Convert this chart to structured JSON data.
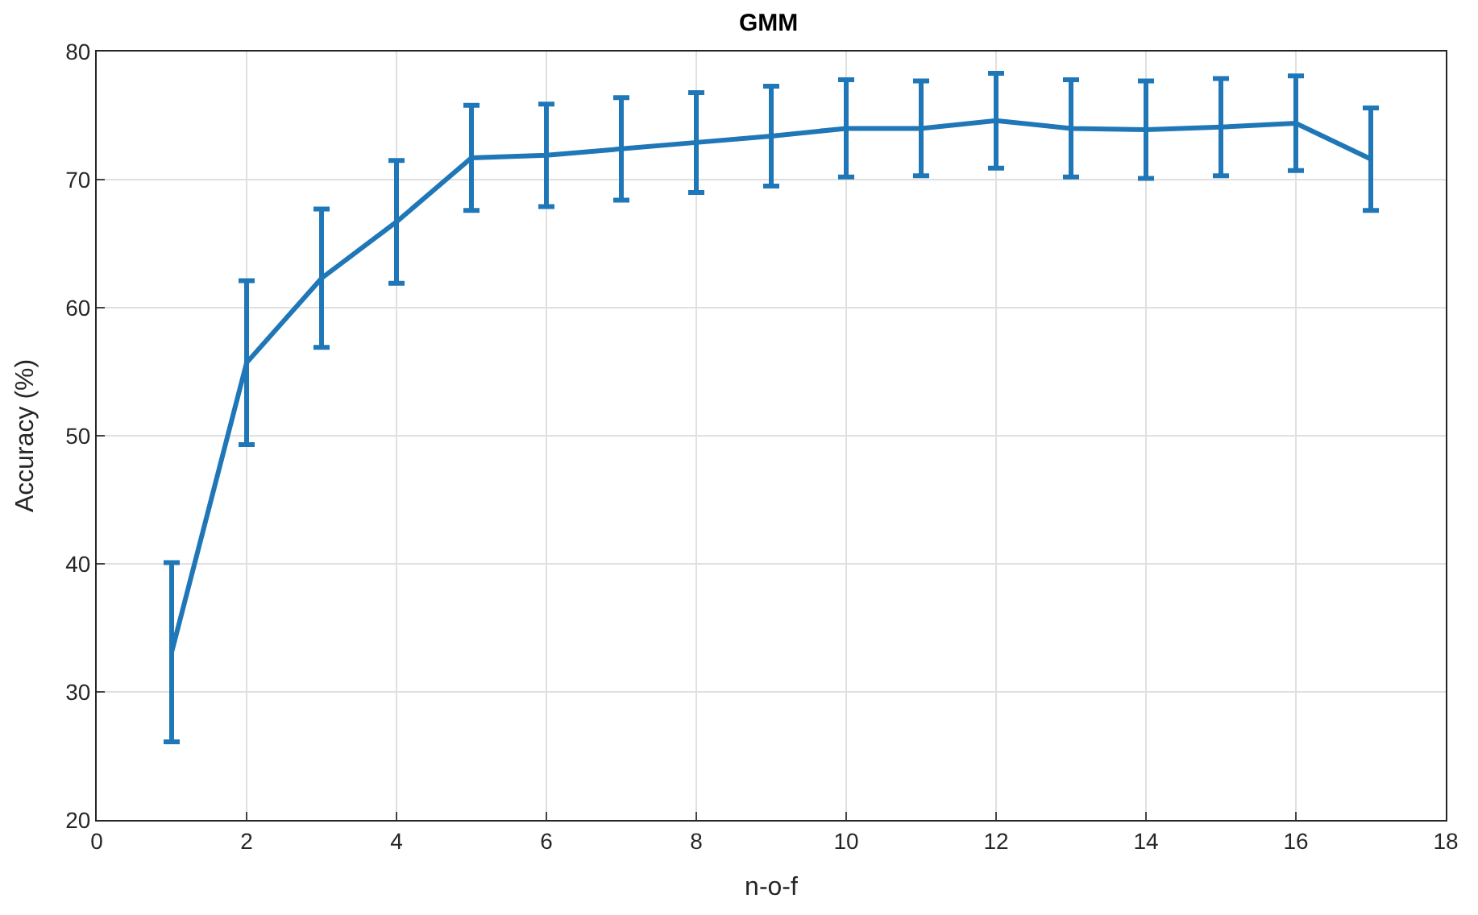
{
  "chart_data": {
    "type": "line",
    "title": "GMM",
    "xlabel": "n-o-f",
    "ylabel": "Accuracy (%)",
    "x": [
      1,
      2,
      3,
      4,
      5,
      6,
      7,
      8,
      9,
      10,
      11,
      12,
      13,
      14,
      15,
      16,
      17
    ],
    "series": [
      {
        "color": "#1f77b8",
        "values": [
          33.1,
          55.7,
          62.3,
          66.7,
          71.7,
          71.9,
          72.4,
          72.9,
          73.4,
          74.0,
          74.0,
          74.6,
          74.0,
          73.9,
          74.1,
          74.4,
          71.6
        ],
        "errors": [
          7.0,
          6.4,
          5.4,
          4.8,
          4.1,
          4.0,
          4.0,
          3.9,
          3.9,
          3.8,
          3.7,
          3.7,
          3.8,
          3.8,
          3.8,
          3.7,
          4.0
        ]
      }
    ],
    "xlim": [
      0,
      18
    ],
    "xticks": [
      0,
      2,
      4,
      6,
      8,
      10,
      12,
      14,
      16,
      18
    ],
    "ylim": [
      20,
      80
    ],
    "yticks": [
      20,
      30,
      40,
      50,
      60,
      70,
      80
    ],
    "grid": true,
    "marker": "none",
    "line_style": "solid"
  }
}
